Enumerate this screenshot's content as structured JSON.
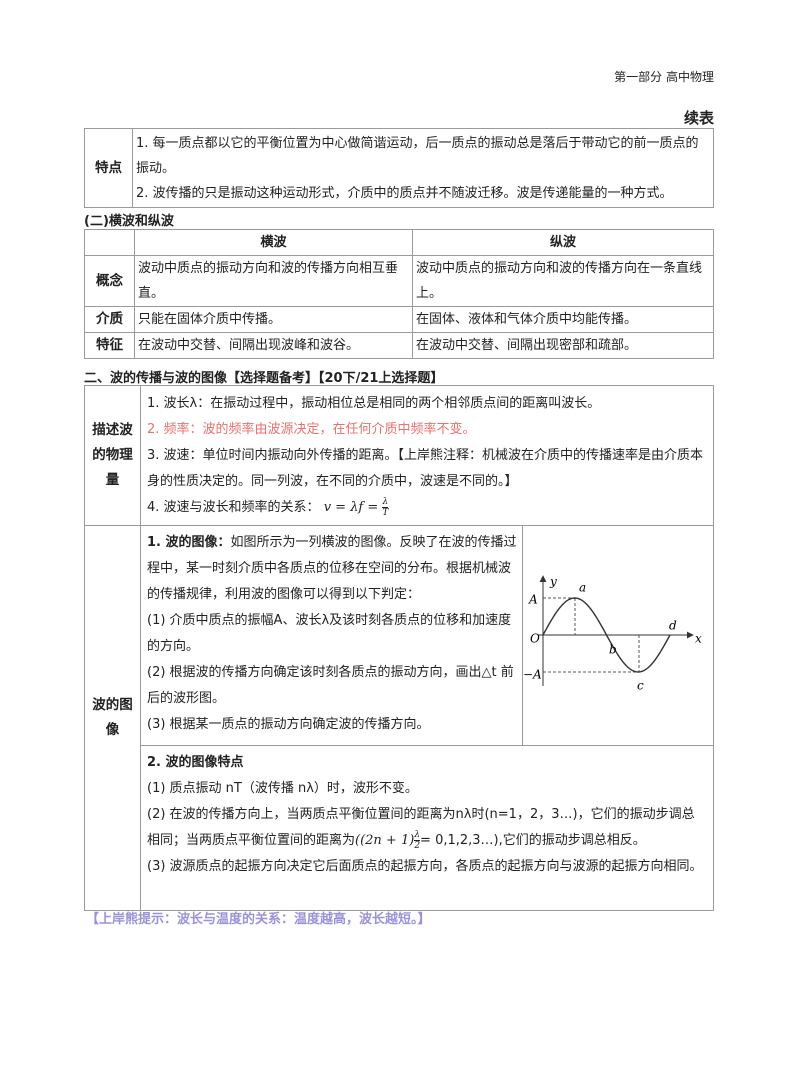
{
  "header": {
    "section": "第一部分  高中物理",
    "continued": "续表"
  },
  "table1": {
    "label": "特点",
    "items": [
      "1. 每一质点都以它的平衡位置为中心做简谐运动，后一质点的振动总是落后于带动它的前一质点的振动。",
      "2. 波传播的只是振动这种运动形式，介质中的质点并不随波迁移。波是传递能量的一种方式。"
    ]
  },
  "section2": {
    "title": "(二)横波和纵波",
    "headers": [
      "横波",
      "纵波"
    ],
    "rows": [
      {
        "label": "概念",
        "cells": [
          "波动中质点的振动方向和波的传播方向相互垂直。",
          "波动中质点的振动方向和波的传播方向在一条直线上。"
        ]
      },
      {
        "label": "介质",
        "cells": [
          "只能在固体介质中传播。",
          "在固体、液体和气体介质中均能传播。"
        ]
      },
      {
        "label": "特征",
        "cells": [
          "在波动中交替、间隔出现波峰和波谷。",
          "在波动中交替、间隔出现密部和疏部。"
        ]
      }
    ]
  },
  "section3": {
    "title": "二、波的传播与波的图像【选择题备考】【20下/21上选择题】",
    "quantities": {
      "label": "描述波的物理量",
      "items": [
        "1. 波长λ：在振动过程中，振动相位总是相同的两个相邻质点间的距离叫波长。",
        "2. 频率：波的频率由波源决定，在任何介质中频率不变。",
        "3. 波速：单位时间内振动向外传播的距离。【上岸熊注释：机械波在介质中的传播速率是由介质本身的性质决定的。同一列波，在不同的介质中，波速是不同的。】"
      ],
      "relation": {
        "text": "4. 波速与波长和频率的关系：",
        "formula": "v = λf =",
        "numerator": "λ",
        "denominator": "T"
      }
    },
    "image": {
      "label": "波的图像",
      "part1": {
        "heading": "1. 波的图像：",
        "text": "如图所示为一列横波的图像。反映了在波的传播过程中，某一时刻介质中各质点的位移在空间的分布。根据机械波的传播规律，利用波的图像可以得到以下判定：",
        "items": [
          "(1) 介质中质点的振幅A、波长λ及该时刻各质点的位移和加速度的方向。",
          "(2) 根据波的传播方向确定该时刻各质点的振动方向，画出△t 前后的波形图。",
          "(3) 根据某一质点的振动方向确定波的传播方向。"
        ]
      },
      "figure": {
        "y_axis": "y",
        "x_axis": "x",
        "amplitude": "A",
        "neg_amplitude": "−A",
        "origin": "O",
        "points": [
          "a",
          "b",
          "c",
          "d"
        ]
      },
      "part2": {
        "heading": "2. 波的图像特点",
        "item1": "(1) 质点振动 nT（波传播 nλ）时，波形不变。",
        "item2": {
          "before": "(2) 在波的传播方向上，当两质点平衡位置间的距离为nλ时(n=1，2，3…)，它们的振动步调总相同；当两质点平衡位置间的距离为",
          "formula": "((2n + 1)",
          "numerator": "λ",
          "denominator": "2",
          "after": "= 0,1,2,3…),它们的振动步调总相反。"
        },
        "item3": "(3) 波源质点的起振方向决定它后面质点的起振方向，各质点的起振方向与波源的起振方向相同。"
      }
    }
  },
  "note": "【上岸熊提示：波长与温度的关系：温度越高，波长越短。】"
}
